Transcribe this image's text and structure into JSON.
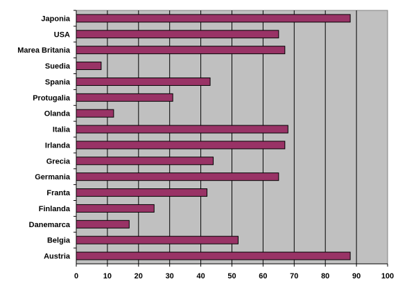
{
  "chart_data": {
    "type": "bar",
    "orientation": "horizontal",
    "categories": [
      "Japonia",
      "USA",
      "Marea Britania",
      "Suedia",
      "Spania",
      "Protugalia",
      "Olanda",
      "Italia",
      "Irlanda",
      "Grecia",
      "Germania",
      "Franta",
      "Finlanda",
      "Danemarca",
      "Belgia",
      "Austria"
    ],
    "values": [
      88,
      65,
      67,
      8,
      43,
      31,
      12,
      68,
      67,
      44,
      65,
      42,
      25,
      17,
      52,
      88
    ],
    "xlim": [
      0,
      100
    ],
    "xticks": [
      "0",
      "10",
      "20",
      "30",
      "40",
      "50",
      "60",
      "70",
      "80",
      "90",
      "100"
    ],
    "title": "",
    "xlabel": "",
    "ylabel": "",
    "grid": "vertical",
    "legend": "none",
    "colors": {
      "bar_fill": "#993366",
      "bar_stroke": "#000000",
      "plot_background": "#c0c0c0",
      "grid": "#000000"
    }
  }
}
